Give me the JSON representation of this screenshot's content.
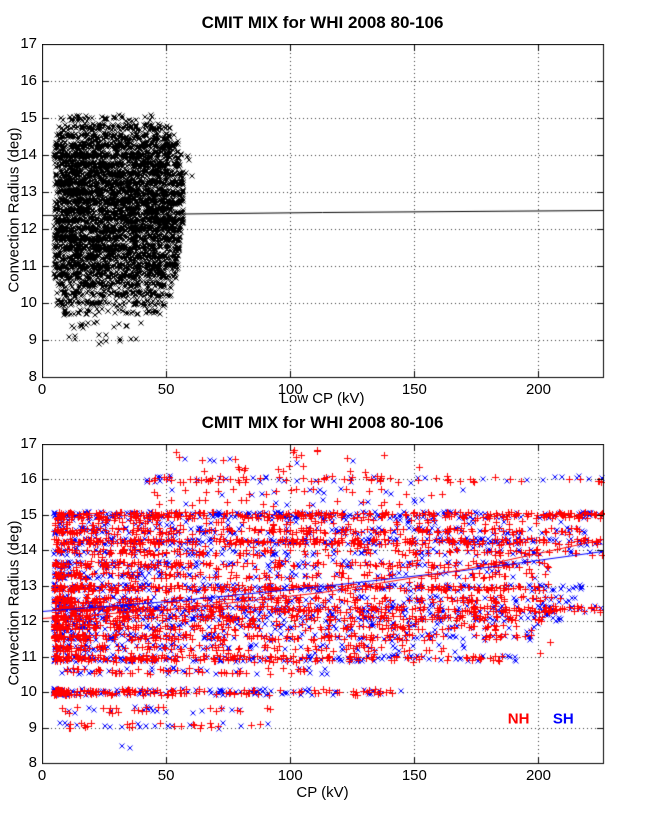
{
  "figure": {
    "background": "#ffffff"
  },
  "colors": {
    "nh": "#ff0000",
    "sh": "#0000ff",
    "top_series": "#000000",
    "axis": "#000000",
    "grid": "#333333"
  },
  "chart_data": [
    {
      "type": "scatter",
      "title": "CMIT MIX for WHI 2008 80-106",
      "xlabel": "Low CP (kV)",
      "ylabel": "Convection Radius (deg)",
      "xlim": [
        0,
        226
      ],
      "ylim": [
        8,
        17
      ],
      "xticks": [
        0,
        50,
        100,
        150,
        200
      ],
      "yticks": [
        8,
        9,
        10,
        11,
        12,
        13,
        14,
        15,
        16,
        17
      ],
      "grid": "dotted",
      "note": "dense cluster of black x markers, CP 5-58 kV, radius 9-15 deg, in horizontal bands every 0.25 deg",
      "series": [
        {
          "name": "convection-radius-vs-low-cp",
          "marker": "x",
          "color": "#000000",
          "jitter": 0.085,
          "bands": [
            [
              15.0,
              40,
              6,
              50
            ],
            [
              14.75,
              110,
              6,
              52
            ],
            [
              14.5,
              150,
              6,
              53
            ],
            [
              14.25,
              210,
              5,
              55
            ],
            [
              14.0,
              250,
              5,
              56
            ],
            [
              13.75,
              230,
              5,
              56
            ],
            [
              13.5,
              240,
              5,
              57
            ],
            [
              13.25,
              250,
              5,
              57
            ],
            [
              13.0,
              255,
              5,
              57
            ],
            [
              12.75,
              250,
              5,
              57
            ],
            [
              12.5,
              250,
              5,
              57
            ],
            [
              12.25,
              245,
              5,
              57
            ],
            [
              12.0,
              240,
              5,
              56
            ],
            [
              11.75,
              230,
              5,
              56
            ],
            [
              11.5,
              220,
              5,
              56
            ],
            [
              11.25,
              210,
              5,
              55
            ],
            [
              11.0,
              195,
              5,
              55
            ],
            [
              10.75,
              165,
              5,
              54
            ],
            [
              10.5,
              135,
              6,
              53
            ],
            [
              10.25,
              105,
              6,
              52
            ],
            [
              10.0,
              85,
              6,
              50
            ],
            [
              9.75,
              45,
              8,
              48
            ],
            [
              9.4,
              16,
              8,
              42
            ],
            [
              9.05,
              9,
              10,
              38
            ],
            [
              8.9,
              3,
              15,
              30
            ],
            [
              13.9,
              3,
              57,
              62
            ],
            [
              13.5,
              2,
              58,
              61
            ],
            [
              12.5,
              260,
              6,
              55,
              1,
              1.9
            ]
          ]
        }
      ],
      "fit_lines": [
        {
          "name": "low-cp-fit",
          "color": "#000000",
          "points": [
            [
              0,
              12.38
            ],
            [
              113,
              12.45
            ],
            [
              226,
              12.52
            ]
          ]
        }
      ]
    },
    {
      "type": "scatter",
      "title": "CMIT MIX for WHI 2008 80-106",
      "xlabel": "CP (kV)",
      "ylabel": "Convection Radius (deg)",
      "xlim": [
        0,
        226
      ],
      "ylim": [
        8,
        17
      ],
      "xticks": [
        0,
        50,
        100,
        150,
        200
      ],
      "yticks": [
        8,
        9,
        10,
        11,
        12,
        13,
        14,
        15,
        16,
        17
      ],
      "grid": "dotted",
      "note": "red + = NH, blue x = SH, horizontal bands 8.5-17 deg over CP 5-226 kV, density decreasing to the right",
      "series": [
        {
          "name": "SH",
          "marker": "x",
          "color": "#0000ff",
          "jitter": 0.09,
          "bands": [
            [
              16.5,
              6,
              45,
              150
            ],
            [
              16.0,
              40,
              42,
              226,
              1.3
            ],
            [
              15.65,
              13,
              45,
              170
            ],
            [
              15.35,
              10,
              45,
              170
            ],
            [
              15.0,
              200,
              5,
              226,
              1.15
            ],
            [
              14.8,
              45,
              5,
              210,
              1.5
            ],
            [
              14.55,
              135,
              5,
              222,
              1.35
            ],
            [
              14.25,
              195,
              5,
              226,
              1.1
            ],
            [
              13.95,
              90,
              5,
              226,
              1.5
            ],
            [
              13.6,
              110,
              5,
              210,
              1.5
            ],
            [
              13.3,
              80,
              5,
              200,
              1.7
            ],
            [
              12.95,
              165,
              5,
              218,
              1.3
            ],
            [
              12.6,
              115,
              5,
              215,
              1.7
            ],
            [
              12.35,
              180,
              5,
              226,
              1.2
            ],
            [
              12.1,
              140,
              5,
              212,
              1.4
            ],
            [
              11.85,
              105,
              5,
              200,
              1.7
            ],
            [
              11.55,
              120,
              5,
              198,
              1.7
            ],
            [
              11.25,
              70,
              5,
              170,
              1.9
            ],
            [
              10.95,
              135,
              5,
              195,
              1.5
            ],
            [
              10.6,
              38,
              8,
              115,
              1.4
            ],
            [
              10.0,
              110,
              5,
              145,
              2.0
            ],
            [
              9.5,
              18,
              8,
              95,
              1.2
            ],
            [
              9.05,
              18,
              5,
              95,
              1.2
            ],
            [
              8.5,
              2,
              25,
              40
            ],
            [
              12.6,
              110,
              5,
              210,
              1.6,
              1.7
            ]
          ]
        },
        {
          "name": "NH",
          "marker": "+",
          "color": "#ff0000",
          "jitter": 0.09,
          "bands": [
            [
              16.85,
              5,
              45,
              135
            ],
            [
              16.6,
              8,
              45,
              140
            ],
            [
              16.3,
              12,
              45,
              155
            ],
            [
              16.0,
              55,
              42,
              170,
              1.1
            ],
            [
              16.0,
              12,
              150,
              226
            ],
            [
              15.65,
              20,
              45,
              165
            ],
            [
              15.35,
              16,
              45,
              165
            ],
            [
              15.0,
              290,
              5,
              226,
              1.15
            ],
            [
              14.8,
              65,
              5,
              205,
              1.5
            ],
            [
              14.55,
              190,
              5,
              218,
              1.35
            ],
            [
              14.25,
              270,
              5,
              226,
              1.1
            ],
            [
              13.95,
              125,
              5,
              226,
              1.6
            ],
            [
              13.6,
              160,
              5,
              205,
              1.5
            ],
            [
              13.3,
              115,
              5,
              198,
              1.7
            ],
            [
              12.95,
              230,
              5,
              205,
              1.4
            ],
            [
              12.6,
              165,
              5,
              212,
              1.7
            ],
            [
              12.35,
              250,
              5,
              226,
              1.25
            ],
            [
              12.1,
              195,
              5,
              205,
              1.5
            ],
            [
              11.85,
              155,
              5,
              198,
              1.7
            ],
            [
              11.55,
              175,
              5,
              195,
              1.7
            ],
            [
              11.25,
              95,
              5,
              165,
              1.9
            ],
            [
              10.95,
              185,
              5,
              188,
              1.6
            ],
            [
              10.6,
              52,
              8,
              112,
              1.4
            ],
            [
              10.0,
              155,
              5,
              142,
              2.0
            ],
            [
              9.5,
              24,
              8,
              98,
              1.2
            ],
            [
              9.05,
              24,
              5,
              95,
              1.2
            ],
            [
              12.6,
              150,
              5,
              205,
              1.6,
              1.7
            ]
          ]
        }
      ],
      "fit_lines": [
        {
          "name": "sh-fit",
          "color": "#0000ff",
          "points": [
            [
              0,
              12.28
            ],
            [
              56,
              12.6
            ],
            [
              113,
              12.98
            ],
            [
              170,
              13.45
            ],
            [
              226,
              13.98
            ]
          ]
        },
        {
          "name": "nh-fit",
          "color": "#ff0000",
          "points": [
            [
              0,
              12.08
            ],
            [
              56,
              12.38
            ],
            [
              113,
              12.82
            ],
            [
              170,
              13.48
            ],
            [
              226,
              14.32
            ]
          ]
        }
      ],
      "legend": [
        {
          "label": "NH",
          "color": "#ff0000",
          "x": 192,
          "y": 9.25
        },
        {
          "label": "SH",
          "color": "#0000ff",
          "x": 210,
          "y": 9.25
        }
      ]
    }
  ]
}
